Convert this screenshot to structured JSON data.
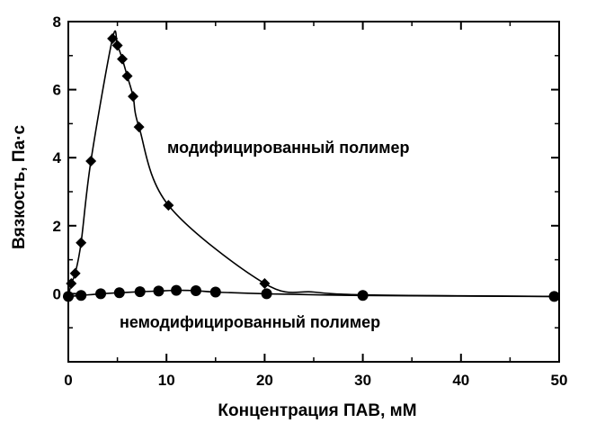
{
  "chart_data": {
    "type": "scatter",
    "xlabel": "Концентрация ПАВ, мМ",
    "ylabel": "Вязкость, Па·с",
    "xlim": [
      0,
      50
    ],
    "ylim": [
      -2,
      8
    ],
    "xticks": [
      "0",
      "10",
      "20",
      "30",
      "40",
      "50"
    ],
    "yticks": [
      "0",
      "2",
      "4",
      "6",
      "8"
    ],
    "grid": false,
    "series": [
      {
        "name": "модифицированный полимер",
        "marker": "diamond",
        "x": [
          0,
          0.3,
          0.7,
          1.3,
          2.3,
          4.5,
          5.0,
          5.5,
          6.0,
          6.6,
          7.2,
          10.2,
          20.0
        ],
        "y": [
          -0.1,
          0.3,
          0.6,
          1.5,
          3.9,
          7.5,
          7.3,
          6.9,
          6.4,
          5.8,
          4.9,
          2.6,
          0.3
        ]
      },
      {
        "name": "немодифицированный полимер",
        "marker": "circle",
        "x": [
          0,
          1.3,
          3.3,
          5.2,
          7.3,
          9.2,
          11.0,
          13.0,
          15.0,
          20.2,
          30.0,
          49.5
        ],
        "y": [
          -0.08,
          -0.05,
          0.0,
          0.03,
          0.06,
          0.08,
          0.1,
          0.09,
          0.05,
          0.0,
          -0.05,
          -0.08
        ]
      }
    ],
    "annotations": [
      {
        "text": "модифицированный полимер"
      },
      {
        "text": "немодифицированный полимер"
      }
    ]
  }
}
